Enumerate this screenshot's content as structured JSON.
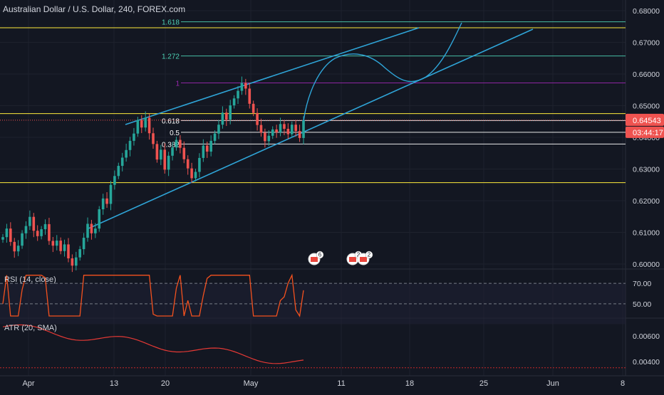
{
  "header": {
    "title": "Australian Dollar / U.S. Dollar, 240, FOREX.com"
  },
  "price_axis": {
    "ticks": [
      "0.68000",
      "0.67000",
      "0.66000",
      "0.65000",
      "0.64000",
      "0.63000",
      "0.62000",
      "0.61000",
      "0.60000"
    ],
    "current_price": "0.64543",
    "countdown": "03:44:17"
  },
  "time_axis": {
    "ticks": [
      "Apr",
      "13",
      "20",
      "May",
      "11",
      "18",
      "25",
      "Jun",
      "8"
    ]
  },
  "fib_levels": [
    {
      "label": "1.618",
      "value": 0.6765,
      "color": "#4dd0b4"
    },
    {
      "label": "1.272",
      "value": 0.6657,
      "color": "#4dd0b4"
    },
    {
      "label": "1",
      "value": 0.6572,
      "color": "#9c27b0"
    },
    {
      "label": "0.618",
      "value": 0.6453,
      "color": "#ffffff"
    },
    {
      "label": "0.5",
      "value": 0.6416,
      "color": "#ffffff"
    },
    {
      "label": "0.382",
      "value": 0.6379,
      "color": "#ffffff"
    }
  ],
  "rsi": {
    "label": "RSI (14, close)",
    "ticks": [
      "70.00",
      "50.00"
    ]
  },
  "atr": {
    "label": "ATR (20, SMA)",
    "ticks": [
      "0.00600",
      "0.00400"
    ]
  },
  "event_badges": [
    {
      "count": "6",
      "color": "#e8453c"
    },
    {
      "count": "2",
      "color": "#e8453c"
    },
    {
      "count": "2",
      "color": "#e8453c"
    }
  ],
  "colors": {
    "background": "#131722",
    "up": "#26a69a",
    "down": "#ef5350",
    "channel": "#2fa5d8",
    "yellow": "#ffeb3b",
    "rsi": "#f4511e",
    "atr": "#e53935"
  },
  "chart_data": {
    "type": "candlestick",
    "title": "Australian Dollar / U.S. Dollar, 240, FOREX.com",
    "interval": "240",
    "ylim": [
      0.5985,
      0.6815
    ],
    "x_ticks": [
      "Apr",
      "13",
      "20",
      "May",
      "11",
      "18",
      "25",
      "Jun",
      "8"
    ],
    "last_price": 0.64543,
    "horizontal_levels": [
      0.6746,
      0.6475,
      0.6257
    ],
    "ohlc_close": [
      0.6085,
      0.6112,
      0.607,
      0.604,
      0.6058,
      0.6097,
      0.612,
      0.6149,
      0.6105,
      0.6088,
      0.611,
      0.6126,
      0.6073,
      0.6058,
      0.6074,
      0.6041,
      0.6062,
      0.6018,
      0.5995,
      0.6021,
      0.6047,
      0.6083,
      0.6127,
      0.6097,
      0.6112,
      0.6173,
      0.6207,
      0.619,
      0.625,
      0.6278,
      0.631,
      0.6336,
      0.636,
      0.6389,
      0.6412,
      0.6455,
      0.6431,
      0.6462,
      0.6413,
      0.6379,
      0.633,
      0.6361,
      0.6298,
      0.6342,
      0.6368,
      0.6392,
      0.6367,
      0.6331,
      0.6302,
      0.6271,
      0.6291,
      0.6335,
      0.6374,
      0.6355,
      0.6389,
      0.6412,
      0.644,
      0.6478,
      0.6456,
      0.6501,
      0.6523,
      0.6547,
      0.6572,
      0.6554,
      0.6506,
      0.6477,
      0.6439,
      0.6415,
      0.6388,
      0.6405,
      0.6425,
      0.6416,
      0.6442,
      0.6427,
      0.641,
      0.644,
      0.642,
      0.6398,
      0.6454
    ],
    "forecast_path": [
      [
        0.6454,
        0.6454
      ],
      [
        0.653,
        0.66
      ],
      [
        0.6658,
        0.663
      ],
      [
        0.658,
        0.6572
      ],
      [
        0.662,
        0.677
      ]
    ],
    "rsi": {
      "ylim": [
        38,
        82
      ],
      "levels": [
        70,
        50
      ]
    },
    "atr": {
      "ylim": [
        0.0031,
        0.0071
      ],
      "ticks": [
        0.006,
        0.004
      ]
    }
  }
}
